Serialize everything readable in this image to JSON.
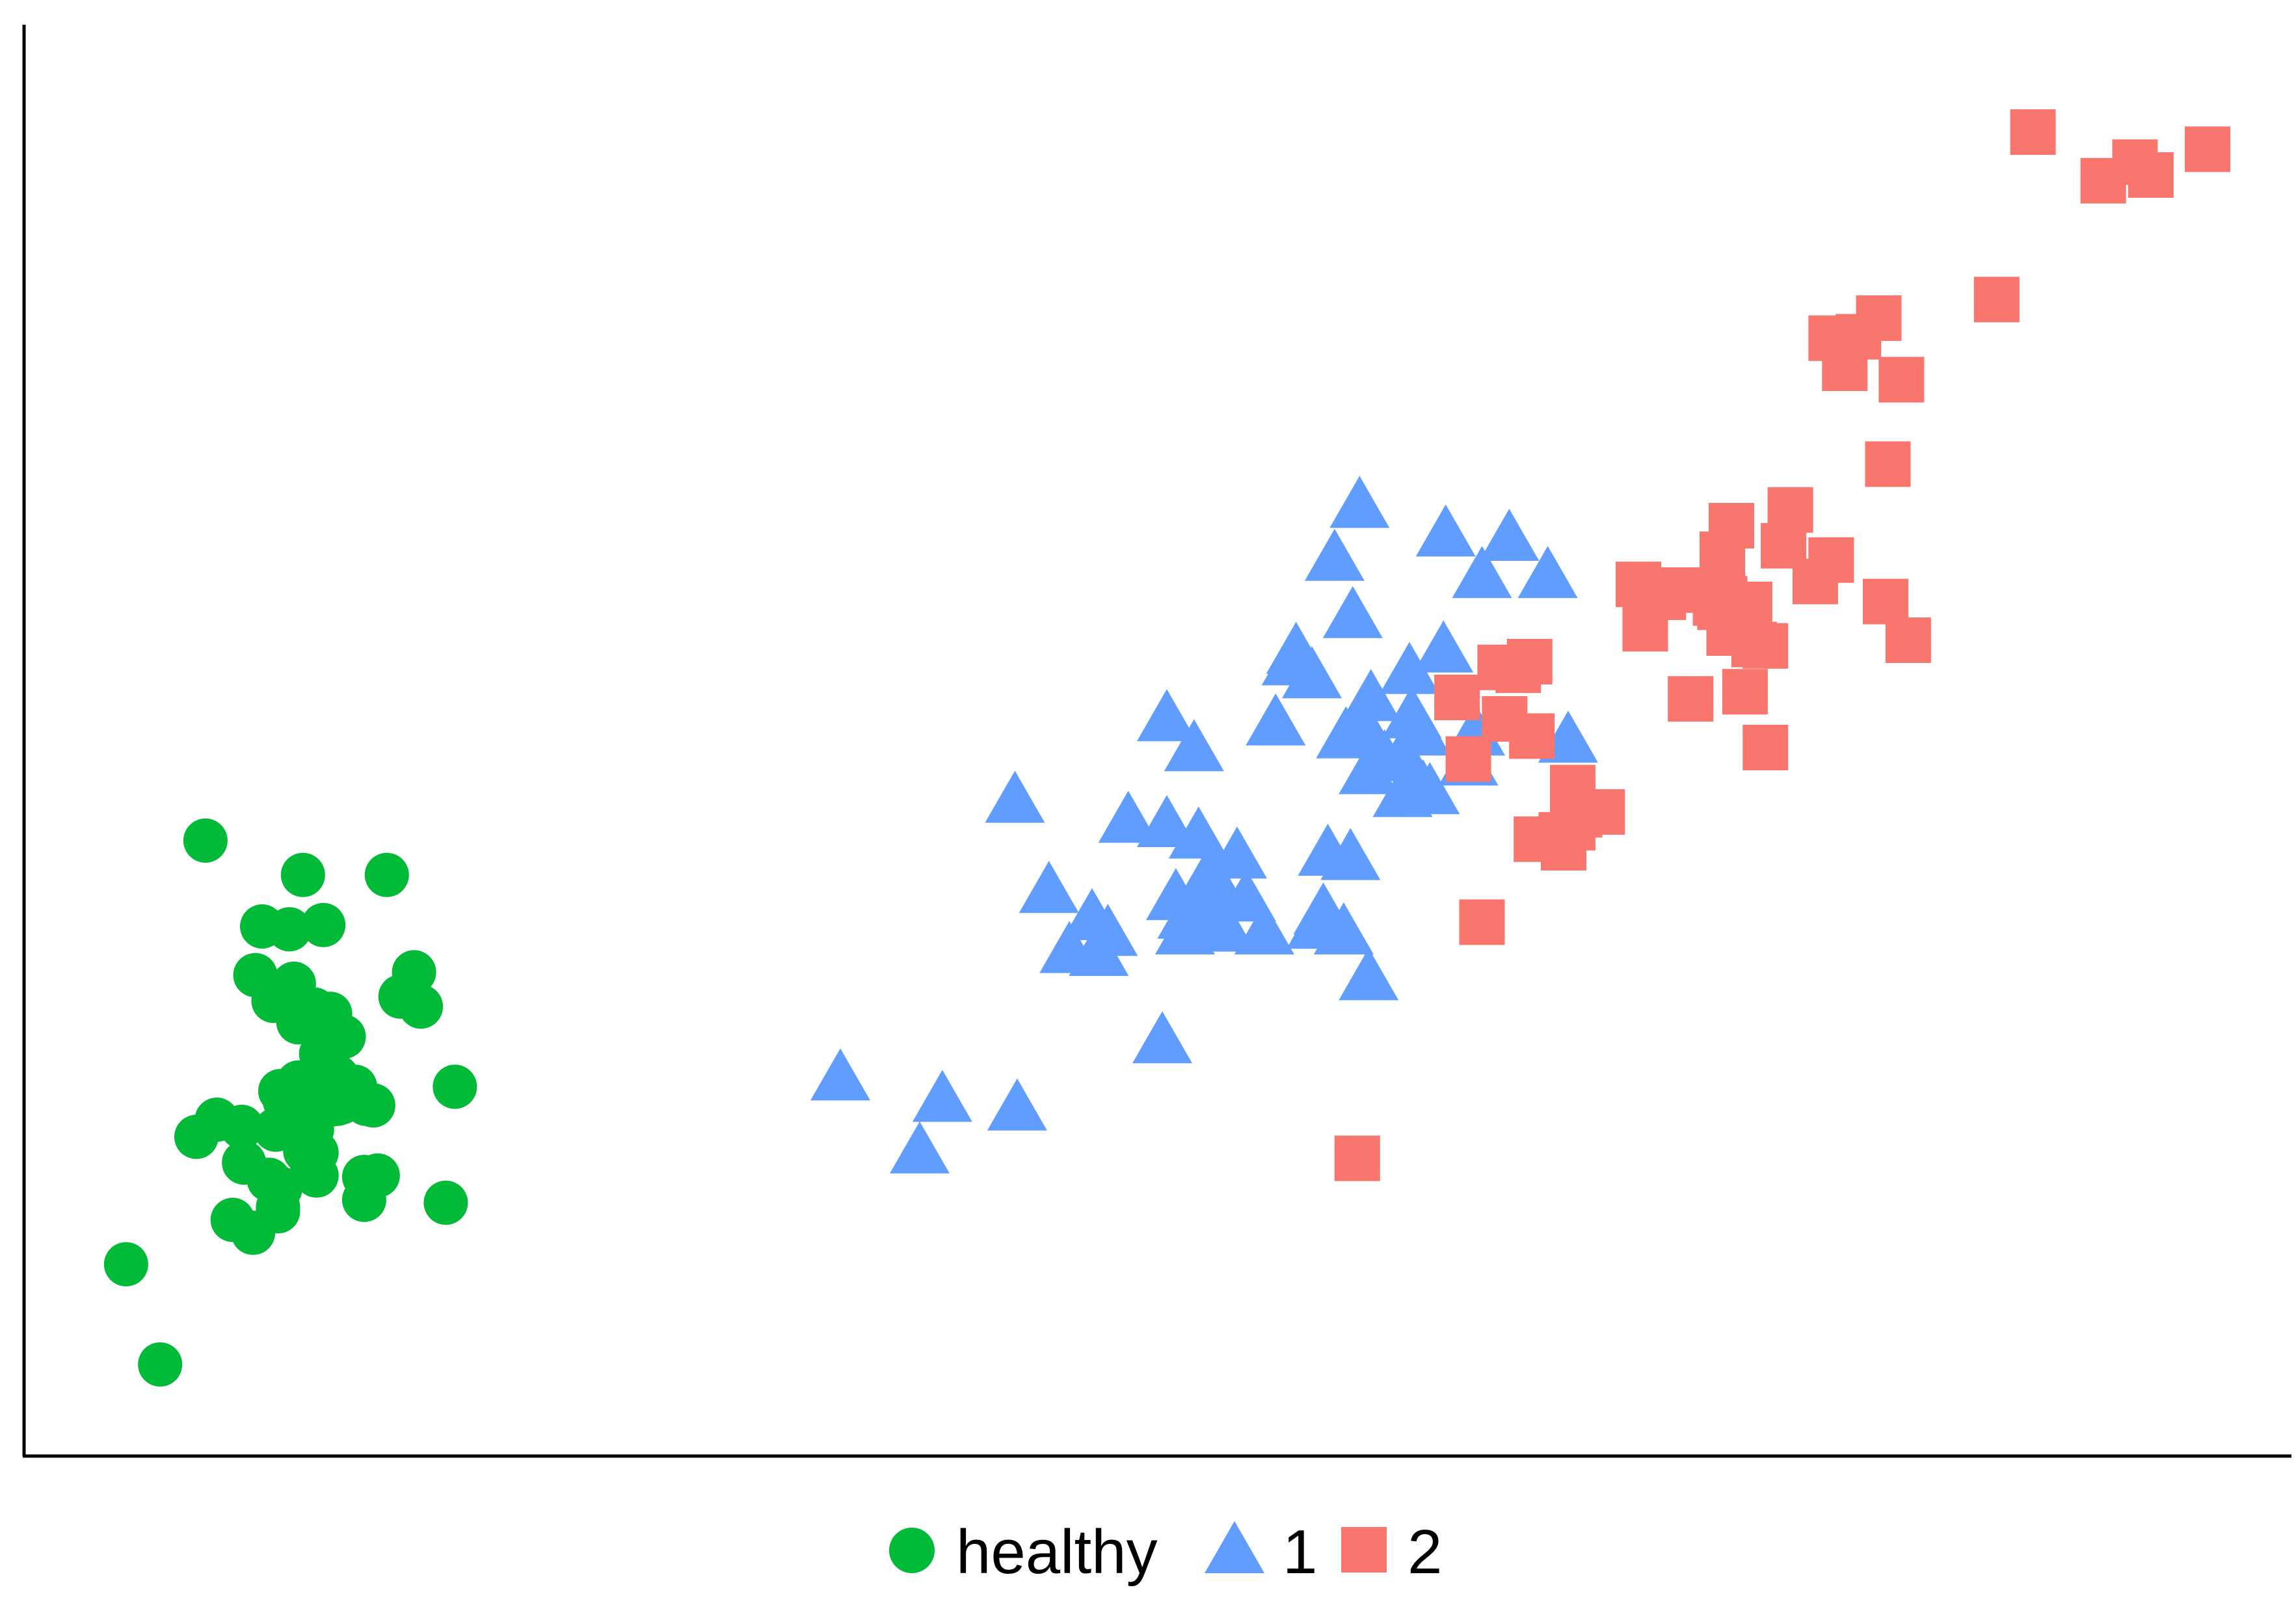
{
  "chart_data": {
    "type": "scatter",
    "title": "",
    "xlabel": "",
    "ylabel": "",
    "xlim": [
      0,
      1000
    ],
    "ylim": [
      0,
      1000
    ],
    "grid": false,
    "legend_position": "bottom",
    "series": [
      {
        "name": "healthy",
        "marker": "circle",
        "color": "#00BA38",
        "points": [
          [
            80,
            430
          ],
          [
            123,
            406
          ],
          [
            160,
            406
          ],
          [
            105,
            370
          ],
          [
            117,
            368
          ],
          [
            132,
            371
          ],
          [
            172,
            338
          ],
          [
            102,
            336
          ],
          [
            110,
            318
          ],
          [
            119,
            330
          ],
          [
            128,
            312
          ],
          [
            121,
            303
          ],
          [
            136,
            300
          ],
          [
            166,
            321
          ],
          [
            175,
            314
          ],
          [
            131,
            281
          ],
          [
            121,
            261
          ],
          [
            134,
            245
          ],
          [
            115,
            248
          ],
          [
            76,
            223
          ],
          [
            96,
            230
          ],
          [
            138,
            246
          ],
          [
            122,
            250
          ],
          [
            138,
            265
          ],
          [
            151,
            246
          ],
          [
            120,
            234
          ],
          [
            97,
            205
          ],
          [
            140,
            247
          ],
          [
            120,
            228
          ],
          [
            111,
            228
          ],
          [
            124,
            239
          ],
          [
            113,
            255
          ],
          [
            154,
            245
          ],
          [
            146,
            258
          ],
          [
            190,
            258
          ],
          [
            129,
            212
          ],
          [
            112,
            171
          ],
          [
            108,
            193
          ],
          [
            112,
            174
          ],
          [
            150,
            179
          ],
          [
            101,
            156
          ],
          [
            127,
            228
          ],
          [
            92,
            165
          ],
          [
            150,
            195
          ],
          [
            129,
            196
          ],
          [
            127,
            204
          ],
          [
            156,
            196
          ],
          [
            45,
            134
          ],
          [
            60,
            64
          ],
          [
            186,
            177
          ],
          [
            124,
            213
          ],
          [
            125,
            216
          ],
          [
            113,
            187
          ],
          [
            85,
            235
          ],
          [
            135,
            309
          ],
          [
            141,
            293
          ]
        ]
      },
      {
        "name": "1",
        "marker": "triangle",
        "color": "#619CFF",
        "points": [
          [
            360,
            263
          ],
          [
            405,
            248
          ],
          [
            438,
            242
          ],
          [
            395,
            212
          ],
          [
            437,
            457
          ],
          [
            452,
            394
          ],
          [
            471,
            375
          ],
          [
            461,
            352
          ],
          [
            478,
            364
          ],
          [
            474,
            350
          ],
          [
            487,
            443
          ],
          [
            504,
            514
          ],
          [
            516,
            493
          ],
          [
            504,
            440
          ],
          [
            518,
            432
          ],
          [
            523,
            406
          ],
          [
            528,
            390
          ],
          [
            518,
            377
          ],
          [
            535,
            418
          ],
          [
            539,
            388
          ],
          [
            530,
            367
          ],
          [
            508,
            389
          ],
          [
            512,
            365
          ],
          [
            547,
            365
          ],
          [
            573,
            379
          ],
          [
            575,
            420
          ],
          [
            513,
            376
          ],
          [
            502,
            289
          ],
          [
            593,
            333
          ],
          [
            582,
            365
          ],
          [
            570,
            369
          ],
          [
            585,
            417
          ],
          [
            608,
            461
          ],
          [
            600,
            486
          ],
          [
            583,
            502
          ],
          [
            608,
            488
          ],
          [
            612,
            516
          ],
          [
            617,
            465
          ],
          [
            591,
            508
          ],
          [
            594,
            528
          ],
          [
            561,
            561
          ],
          [
            552,
            511
          ],
          [
            568,
            544
          ],
          [
            586,
            586
          ],
          [
            578,
            626
          ],
          [
            589,
            663
          ],
          [
            611,
            547
          ],
          [
            626,
            562
          ],
          [
            640,
            504
          ],
          [
            616,
            504
          ],
          [
            620,
            463
          ],
          [
            643,
            614
          ],
          [
            655,
            640
          ],
          [
            627,
            643
          ],
          [
            672,
            614
          ],
          [
            637,
            483
          ],
          [
            681,
            499
          ],
          [
            593,
            477
          ],
          [
            559,
            553
          ]
        ]
      },
      {
        "name": "2",
        "marker": "square",
        "color": "#F8766D",
        "points": [
          [
            588,
            208
          ],
          [
            643,
            373
          ],
          [
            632,
            530
          ],
          [
            637,
            487
          ],
          [
            653,
            515
          ],
          [
            659,
            549
          ],
          [
            651,
            551
          ],
          [
            664,
            555
          ],
          [
            665,
            503
          ],
          [
            667,
            431
          ],
          [
            683,
            467
          ],
          [
            683,
            439
          ],
          [
            678,
            434
          ],
          [
            679,
            425
          ],
          [
            686,
            448
          ],
          [
            696,
            450
          ],
          [
            712,
            609
          ],
          [
            735,
            529
          ],
          [
            746,
            596
          ],
          [
            753,
            650
          ],
          [
            731,
            605
          ],
          [
            715,
            578
          ],
          [
            723,
            600
          ],
          [
            748,
            593
          ],
          [
            749,
            630
          ],
          [
            750,
            599
          ],
          [
            752,
            575
          ],
          [
            759,
            593
          ],
          [
            759,
            534
          ],
          [
            761,
            595
          ],
          [
            768,
            495
          ],
          [
            763,
            567
          ],
          [
            776,
            636
          ],
          [
            768,
            566
          ],
          [
            790,
            611
          ],
          [
            797,
            626
          ],
          [
            779,
            661
          ],
          [
            831,
            570
          ],
          [
            821,
            597
          ],
          [
            828,
            752
          ],
          [
            822,
            693
          ],
          [
            818,
            795
          ],
          [
            803,
            760
          ],
          [
            809,
            782
          ],
          [
            797,
            781
          ],
          [
            870,
            808
          ],
          [
            886,
            925
          ],
          [
            917,
            891
          ],
          [
            931,
            904
          ],
          [
            938,
            895
          ],
          [
            963,
            913
          ]
        ]
      }
    ]
  }
}
